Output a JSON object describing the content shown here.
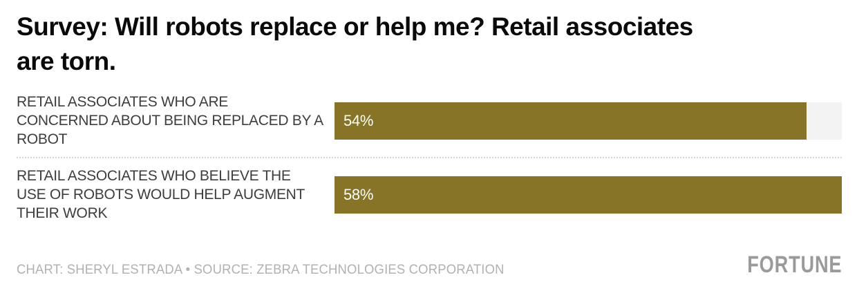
{
  "header": {
    "title_line1": "Survey: Will robots replace or help me? Retail associates",
    "title_line2": "are torn."
  },
  "chart_data": {
    "type": "bar",
    "orientation": "horizontal",
    "title": "Survey: Will robots replace or help me? Retail associates are torn.",
    "categories": [
      "RETAIL ASSOCIATES WHO ARE CONCERNED ABOUT BEING REPLACED BY A ROBOT",
      "RETAIL ASSOCIATES WHO BELIEVE THE USE OF ROBOTS WOULD HELP AUGMENT THEIR WORK"
    ],
    "values": [
      54,
      58
    ],
    "value_labels": [
      "54%",
      "58%"
    ],
    "unit": "percent",
    "xlim": [
      0,
      58
    ],
    "bar_color": "#877426",
    "track_color": "#f3f3f3",
    "grid": false,
    "legend": false,
    "value_label_position": "inside-left"
  },
  "footer": {
    "credit": "CHART: SHERYL ESTRADA • SOURCE: ZEBRA TECHNOLOGIES CORPORATION",
    "brand": "FORTUNE"
  },
  "colors": {
    "title": "#0a0a0a",
    "label": "#3d3d3d",
    "bar": "#877426",
    "track": "#f3f3f3",
    "separator": "#d6d6d6",
    "credit": "#b1b1b1",
    "brand": "#9a9a9a",
    "background": "#ffffff"
  }
}
